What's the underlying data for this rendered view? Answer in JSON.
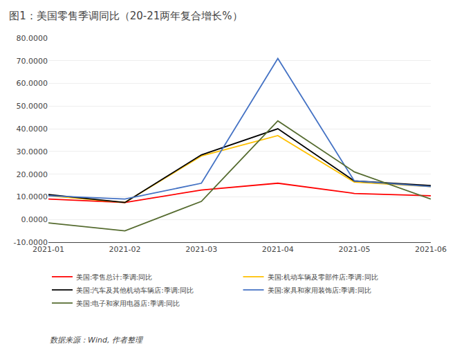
{
  "chart_data": {
    "type": "line",
    "title": "图1：美国零售季调同比（20-21两年复合增长%）",
    "categories": [
      "2021-01",
      "2021-02",
      "2021-03",
      "2021-04",
      "2021-05",
      "2021-06"
    ],
    "series": [
      {
        "name": "美国:零售总计:季调:同比",
        "color": "#FF0000",
        "values": [
          9.0,
          7.5,
          13.0,
          16.0,
          11.5,
          10.5
        ]
      },
      {
        "name": "美国:机动车辆及零部件店:季调:同比",
        "color": "#FFC000",
        "values": [
          10.5,
          7.5,
          28.0,
          37.0,
          16.5,
          14.5
        ]
      },
      {
        "name": "美国:汽车及其他机动车辆店:季调:同比",
        "color": "#000000",
        "values": [
          11.0,
          7.5,
          28.5,
          40.0,
          17.0,
          15.0
        ]
      },
      {
        "name": "美国:家具和家用装饰店:季调:同比",
        "color": "#4472C4",
        "values": [
          10.5,
          9.0,
          16.0,
          71.0,
          17.0,
          14.5
        ]
      },
      {
        "name": "美国:电子和家用电器店:季调:同比",
        "color": "#556B2F",
        "values": [
          -1.5,
          -5.0,
          8.0,
          43.5,
          21.0,
          9.0
        ]
      }
    ],
    "ylim": [
      -10,
      80
    ],
    "yticks": [
      {
        "value": -10,
        "label": "-10.0000"
      },
      {
        "value": 0,
        "label": "0.0000"
      },
      {
        "value": 10,
        "label": "10.0000"
      },
      {
        "value": 20,
        "label": "20.0000"
      },
      {
        "value": 30,
        "label": "30.0000"
      },
      {
        "value": 40,
        "label": "40.0000"
      },
      {
        "value": 50,
        "label": "50.0000"
      },
      {
        "value": 60,
        "label": "60.0000"
      },
      {
        "value": 70,
        "label": "70.0000"
      },
      {
        "value": 80,
        "label": "80.0000"
      }
    ],
    "grid": true,
    "legend": "bottom",
    "annotations": [
      "数据来源：Wind, 作者整理"
    ]
  }
}
